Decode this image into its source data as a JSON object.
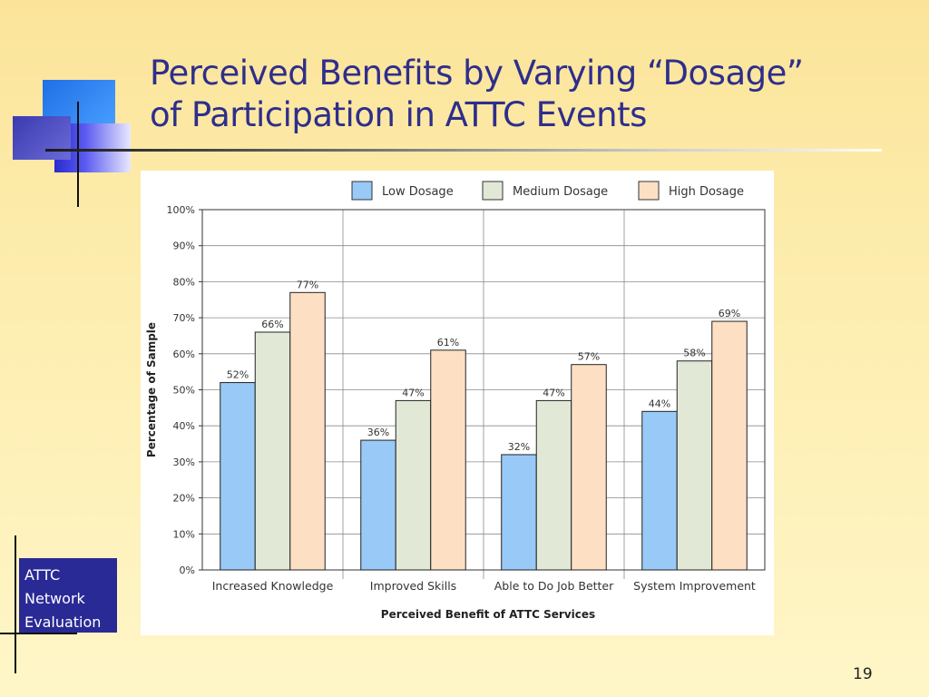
{
  "slide": {
    "title_line1": "Perceived Benefits by Varying “Dosage”",
    "title_line2": "of Participation in ATTC Events",
    "side_label_lines": [
      "ATTC",
      "Network",
      "Evaluation"
    ],
    "page_number": "19"
  },
  "colors": {
    "title": "#2e2e8c",
    "side_box": "#2a2a96"
  },
  "chart_data": {
    "type": "bar",
    "xlabel": "Perceived Benefit of ATTC Services",
    "ylabel": "Percentage of Sample",
    "ylim": [
      0,
      100
    ],
    "y_ticks": [
      "0%",
      "10%",
      "20%",
      "30%",
      "40%",
      "50%",
      "60%",
      "70%",
      "80%",
      "90%",
      "100%"
    ],
    "categories": [
      "Increased Knowledge",
      "Improved Skills",
      "Able to Do Job Better",
      "System Improvement"
    ],
    "series": [
      {
        "name": "Low Dosage",
        "color": "#99c9f7",
        "values": [
          52,
          36,
          32,
          44
        ]
      },
      {
        "name": "Medium Dosage",
        "color": "#e1e9d6",
        "values": [
          66,
          47,
          47,
          58
        ]
      },
      {
        "name": "High Dosage",
        "color": "#fde0c4",
        "values": [
          77,
          61,
          57,
          69
        ]
      }
    ],
    "data_labels": [
      [
        "52%",
        "36%",
        "32%",
        "44%"
      ],
      [
        "66%",
        "47%",
        "47%",
        "58%"
      ],
      [
        "77%",
        "61%",
        "57%",
        "69%"
      ]
    ],
    "legend_position": "top",
    "grid": true
  }
}
